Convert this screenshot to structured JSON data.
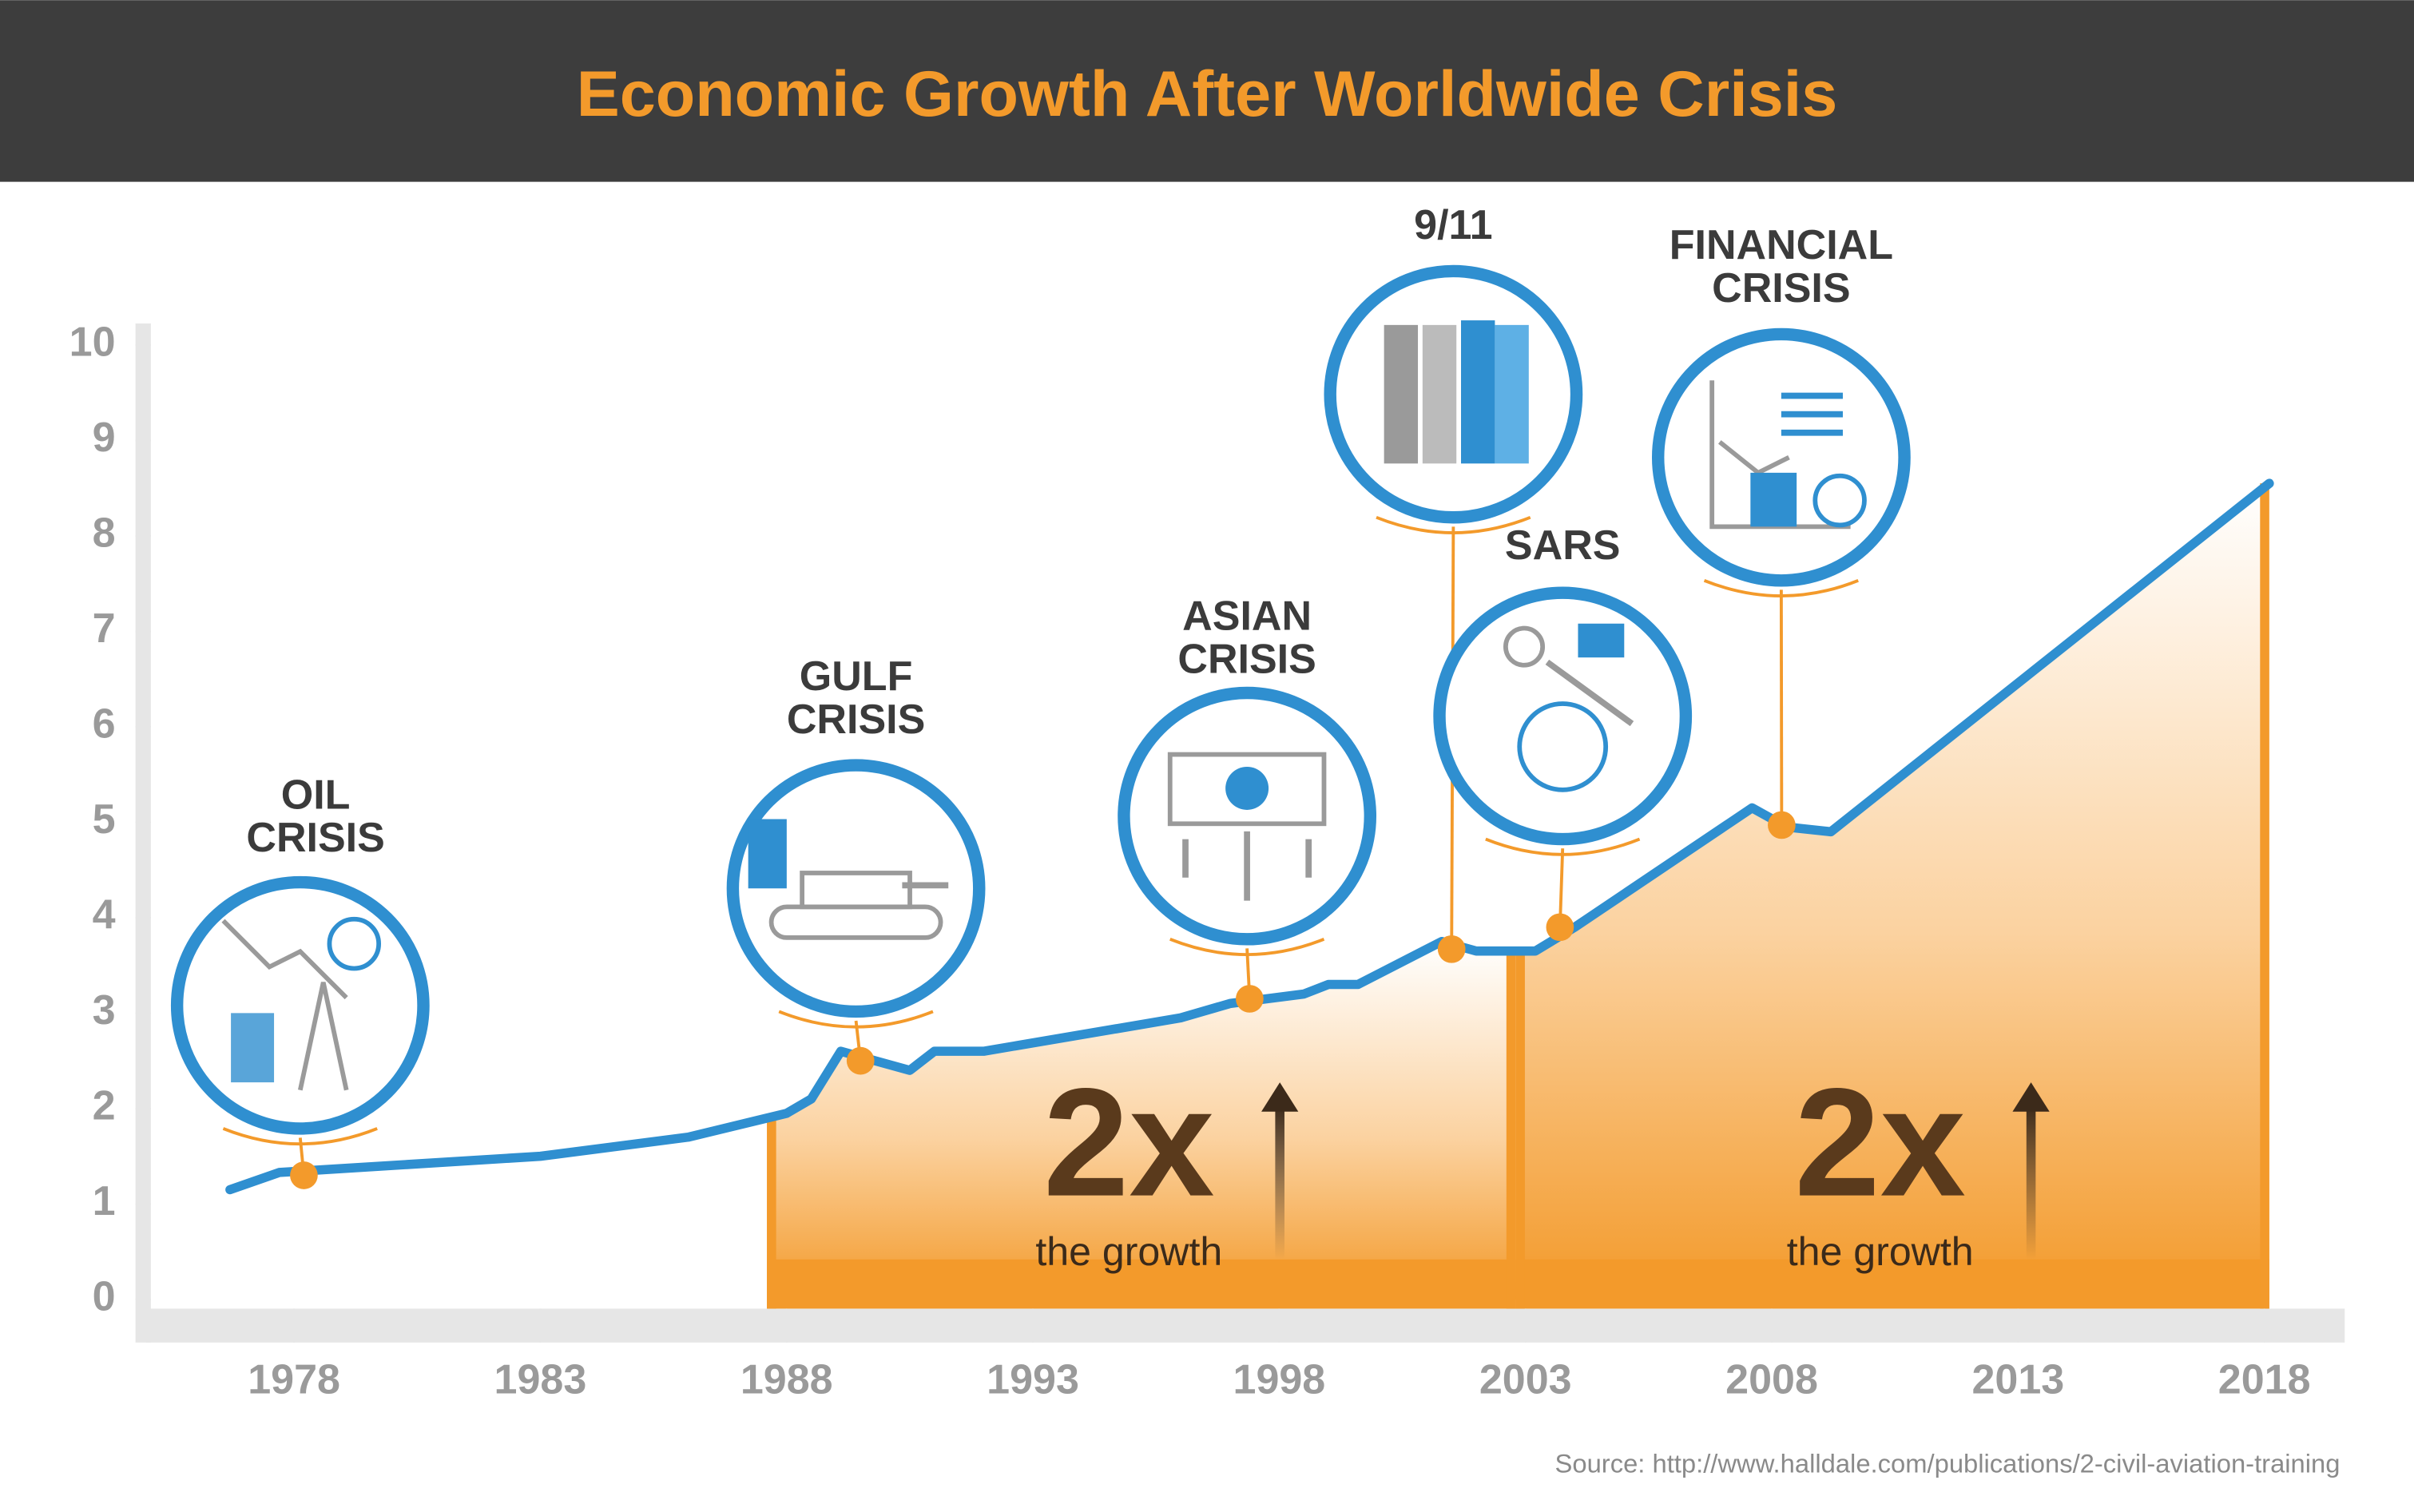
{
  "chart_data": {
    "type": "line",
    "title": "Economic Growth After Worldwide Crisis",
    "source": "Source: http://www.halldale.com/publications/2-civil-aviation-training",
    "color": "#2f8fd0",
    "x": [
      1976.7,
      1977.7,
      1983,
      1986,
      1988,
      1988.5,
      1989.1,
      1990.5,
      1991,
      1992,
      1996,
      1997,
      1998.5,
      1999,
      1999.6,
      2001.3,
      2002,
      2003.2,
      2004,
      2007.6,
      2008.3,
      2009.2,
      2018.1
    ],
    "values": [
      1.15,
      1.33,
      1.5,
      1.7,
      1.95,
      2.1,
      2.6,
      2.4,
      2.6,
      2.6,
      2.95,
      3.1,
      3.2,
      3.3,
      3.3,
      3.75,
      3.65,
      3.65,
      3.9,
      5.15,
      4.95,
      4.9,
      8.55
    ],
    "xlim": [
      1975,
      2019.6
    ],
    "xticks": [
      1978,
      1983,
      1988,
      1993,
      1998,
      2003,
      2008,
      2013,
      2018
    ],
    "ylim": [
      0,
      10
    ],
    "yticks": [
      0,
      1,
      2,
      3,
      4,
      5,
      6,
      7,
      8,
      9,
      10
    ],
    "events": [
      {
        "label": [
          "OIL",
          "CRISIS"
        ],
        "x": 1978.2,
        "y": 1.3
      },
      {
        "label": [
          "GULF",
          "CRISIS"
        ],
        "x": 1989.5,
        "y": 2.5
      },
      {
        "label": [
          "ASIAN",
          "CRISIS"
        ],
        "x": 1997.4,
        "y": 3.15
      },
      {
        "label": [
          "9/11"
        ],
        "x": 2001.5,
        "y": 3.67
      },
      {
        "label": [
          "SARS"
        ],
        "x": 2003.7,
        "y": 3.9
      },
      {
        "label": [
          "FINANCIAL",
          "CRISIS"
        ],
        "x": 2008.2,
        "y": 4.97
      }
    ],
    "marker_color": "#f39a2b",
    "highlight_ranges": [
      {
        "from": 1987.6,
        "to": 2002.8,
        "multiplier": "2x",
        "caption": "the growth"
      },
      {
        "from": 2002.8,
        "to": 2018.1,
        "multiplier": "2x",
        "caption": "the growth"
      }
    ]
  }
}
